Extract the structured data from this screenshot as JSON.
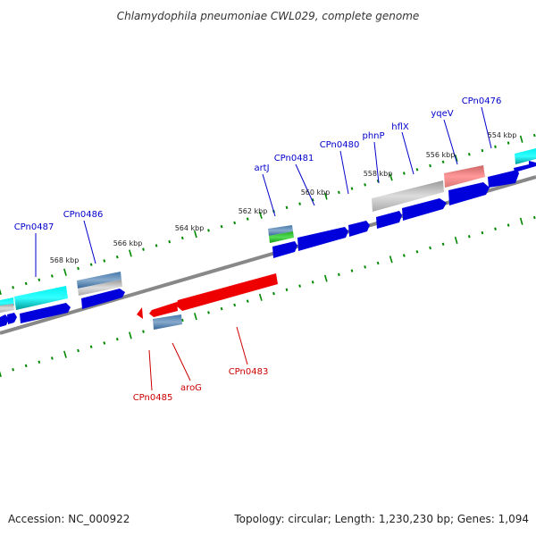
{
  "title": "Chlamydophila pneumoniae CWL029, complete genome",
  "footer": {
    "accession": "Accession: NC_000922",
    "summary": "Topology: circular; Length: 1,230,230 bp; Genes: 1,094"
  },
  "colors": {
    "forward_label": "#0000cc",
    "reverse_label": "#cc0000",
    "tick": "#008800",
    "backbone": "#888888"
  },
  "scale_labels": [
    "554 kbp",
    "556 kbp",
    "558 kbp",
    "560 kbp",
    "562 kbp",
    "564 kbp",
    "566 kbp",
    "568 kbp"
  ],
  "forward_labels": [
    "CPn0476",
    "yqeV",
    "hflX",
    "phnP",
    "CPn0480",
    "CPn0481",
    "artJ",
    "CPn0486",
    "CPn0487"
  ],
  "reverse_labels": [
    "CPn0483",
    "aroG",
    "CPn0485"
  ]
}
